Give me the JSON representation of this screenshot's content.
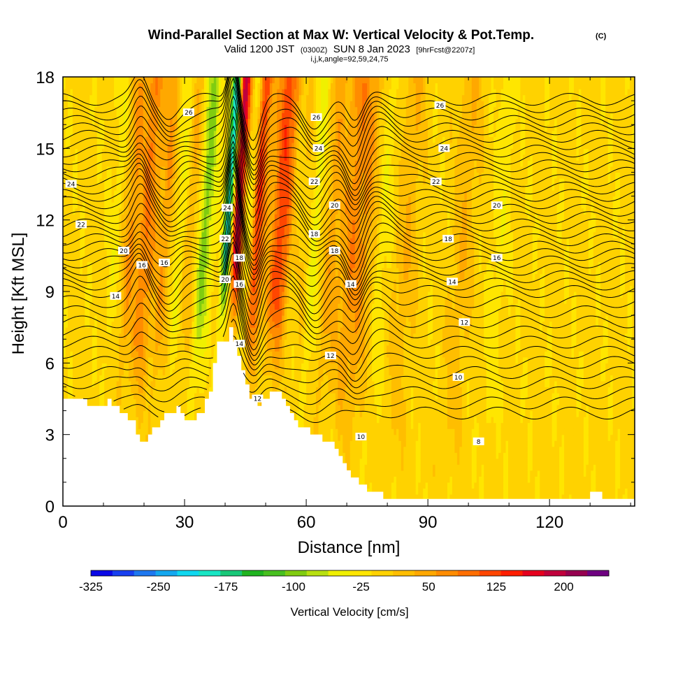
{
  "chart_data": {
    "type": "heatmap",
    "title": "Wind-Parallel Section at Max W: Vertical Velocity & Pot.Temp.",
    "title_mark": "(C)",
    "subtitle_valid": "Valid 1200 JST",
    "subtitle_utc": "(0300Z)",
    "subtitle_date": "SUN 8 Jan 2023",
    "subtitle_fcst": "[9hrFcst@2207z]",
    "subtitle_indices": "i,j,k,angle=92,59,24,75",
    "xlabel": "Distance [nm]",
    "ylabel": "Height [Kft MSL]",
    "xlim": [
      0,
      141
    ],
    "ylim": [
      0,
      18
    ],
    "xticks": [
      "0",
      "30",
      "60",
      "90",
      "120"
    ],
    "xtick_values": [
      0,
      30,
      60,
      90,
      120
    ],
    "yticks": [
      "0",
      "3",
      "6",
      "9",
      "12",
      "15",
      "18"
    ],
    "ytick_values": [
      0,
      3,
      6,
      9,
      12,
      15,
      18
    ],
    "colorbar": {
      "label": "Vertical Velocity [cm/s]",
      "tick_labels": [
        "-325",
        "-250",
        "-175",
        "-100",
        "-25",
        "50",
        "125",
        "200"
      ],
      "tick_values": [
        -325,
        -250,
        -175,
        -100,
        -25,
        50,
        125,
        200
      ],
      "min": -325,
      "max": 250,
      "step": 25,
      "colors": [
        "#0a08e6",
        "#1840f0",
        "#1e78f0",
        "#14a8f0",
        "#10d8f0",
        "#18e6c4",
        "#18c878",
        "#20b420",
        "#48c020",
        "#80cc10",
        "#b8e010",
        "#f0f000",
        "#ffe600",
        "#ffd200",
        "#ffbe00",
        "#ffa800",
        "#ff8c00",
        "#ff6e00",
        "#ff4600",
        "#ff1e00",
        "#e6001e",
        "#c0003c",
        "#960050",
        "#6e0080"
      ]
    },
    "terrain_kft": [
      [
        0,
        4.4
      ],
      [
        3,
        4.5
      ],
      [
        5,
        4.4
      ],
      [
        8,
        4.2
      ],
      [
        11,
        4.4
      ],
      [
        14,
        4.0
      ],
      [
        17,
        3.6
      ],
      [
        18,
        3.0
      ],
      [
        20,
        2.6
      ],
      [
        22,
        3.2
      ],
      [
        25,
        3.8
      ],
      [
        28,
        4.1
      ],
      [
        30,
        3.6
      ],
      [
        32,
        3.6
      ],
      [
        34,
        4.0
      ],
      [
        36,
        4.8
      ],
      [
        37,
        5.9
      ],
      [
        38,
        6.8
      ],
      [
        40,
        7.0
      ],
      [
        41,
        7.6
      ],
      [
        42,
        7.0
      ],
      [
        43,
        6.3
      ],
      [
        44,
        5.7
      ],
      [
        46,
        4.6
      ],
      [
        48,
        4.2
      ],
      [
        50,
        4.6
      ],
      [
        52,
        4.8
      ],
      [
        54,
        4.6
      ],
      [
        56,
        3.8
      ],
      [
        58,
        3.3
      ],
      [
        62,
        3.0
      ],
      [
        66,
        2.6
      ],
      [
        70,
        1.5
      ],
      [
        74,
        0.8
      ],
      [
        78,
        0.5
      ],
      [
        80,
        0.3
      ],
      [
        100,
        0.3
      ],
      [
        128,
        0.3
      ],
      [
        130,
        0.5
      ],
      [
        132,
        0.5
      ],
      [
        134,
        0.3
      ],
      [
        141,
        0.3
      ]
    ],
    "updraft_bands": [
      {
        "x": 16,
        "peak": 80
      },
      {
        "x": 20,
        "peak": 125
      },
      {
        "x": 24,
        "peak": 75
      },
      {
        "x": 31,
        "peak": 60
      },
      {
        "x": 42,
        "peak": 230
      },
      {
        "x": 47,
        "peak": 160
      },
      {
        "x": 53,
        "peak": 135
      },
      {
        "x": 59,
        "peak": 70
      },
      {
        "x": 66,
        "peak": 60
      },
      {
        "x": 70,
        "peak": 75
      },
      {
        "x": 74,
        "peak": 55
      },
      {
        "x": 84,
        "peak": 40
      },
      {
        "x": 98,
        "peak": 40
      }
    ],
    "downdraft_bands": [
      {
        "x": 13,
        "peak": -40
      },
      {
        "x": 18,
        "peak": -60
      },
      {
        "x": 22,
        "peak": -70
      },
      {
        "x": 28,
        "peak": -60
      },
      {
        "x": 34,
        "peak": -110
      },
      {
        "x": 40,
        "peak": -240
      },
      {
        "x": 45,
        "peak": -60
      },
      {
        "x": 57,
        "peak": -55
      },
      {
        "x": 61,
        "peak": -80
      },
      {
        "x": 68,
        "peak": -35
      },
      {
        "x": 78,
        "peak": -30
      },
      {
        "x": 107,
        "peak": -25
      }
    ],
    "contour_levels": [
      "8",
      "10",
      "12",
      "14",
      "16",
      "18",
      "20",
      "22",
      "24",
      "26"
    ],
    "contour_label_positions": [
      {
        "label": "26",
        "x": 31,
        "y": 16.5
      },
      {
        "label": "26",
        "x": 62.5,
        "y": 16.3
      },
      {
        "label": "26",
        "x": 93,
        "y": 16.8
      },
      {
        "label": "24",
        "x": 2,
        "y": 13.5
      },
      {
        "label": "24",
        "x": 63,
        "y": 15.0
      },
      {
        "label": "24",
        "x": 94,
        "y": 15.0
      },
      {
        "label": "24",
        "x": 40.5,
        "y": 12.5
      },
      {
        "label": "22",
        "x": 4.5,
        "y": 11.8
      },
      {
        "label": "22",
        "x": 62,
        "y": 13.6
      },
      {
        "label": "22",
        "x": 92,
        "y": 13.6
      },
      {
        "label": "22",
        "x": 40,
        "y": 11.2
      },
      {
        "label": "20",
        "x": 15,
        "y": 10.7
      },
      {
        "label": "20",
        "x": 67,
        "y": 12.6
      },
      {
        "label": "20",
        "x": 107,
        "y": 12.6
      },
      {
        "label": "20",
        "x": 40,
        "y": 9.5
      },
      {
        "label": "18",
        "x": 62,
        "y": 11.4
      },
      {
        "label": "18",
        "x": 95,
        "y": 11.2
      },
      {
        "label": "18",
        "x": 67,
        "y": 10.7
      },
      {
        "label": "18",
        "x": 43.5,
        "y": 10.4
      },
      {
        "label": "16",
        "x": 19.5,
        "y": 10.1
      },
      {
        "label": "16",
        "x": 25,
        "y": 10.2
      },
      {
        "label": "16",
        "x": 107,
        "y": 10.4
      },
      {
        "label": "16",
        "x": 43.5,
        "y": 9.3
      },
      {
        "label": "14",
        "x": 13,
        "y": 8.8
      },
      {
        "label": "14",
        "x": 71,
        "y": 9.3
      },
      {
        "label": "14",
        "x": 96,
        "y": 9.4
      },
      {
        "label": "14",
        "x": 43.5,
        "y": 6.8
      },
      {
        "label": "12",
        "x": 66,
        "y": 6.3
      },
      {
        "label": "12",
        "x": 99,
        "y": 7.7
      },
      {
        "label": "12",
        "x": 48,
        "y": 4.5
      },
      {
        "label": "10",
        "x": 97.5,
        "y": 5.4
      },
      {
        "label": "10",
        "x": 73.5,
        "y": 2.9
      },
      {
        "label": "8",
        "x": 102.5,
        "y": 2.7
      }
    ]
  }
}
